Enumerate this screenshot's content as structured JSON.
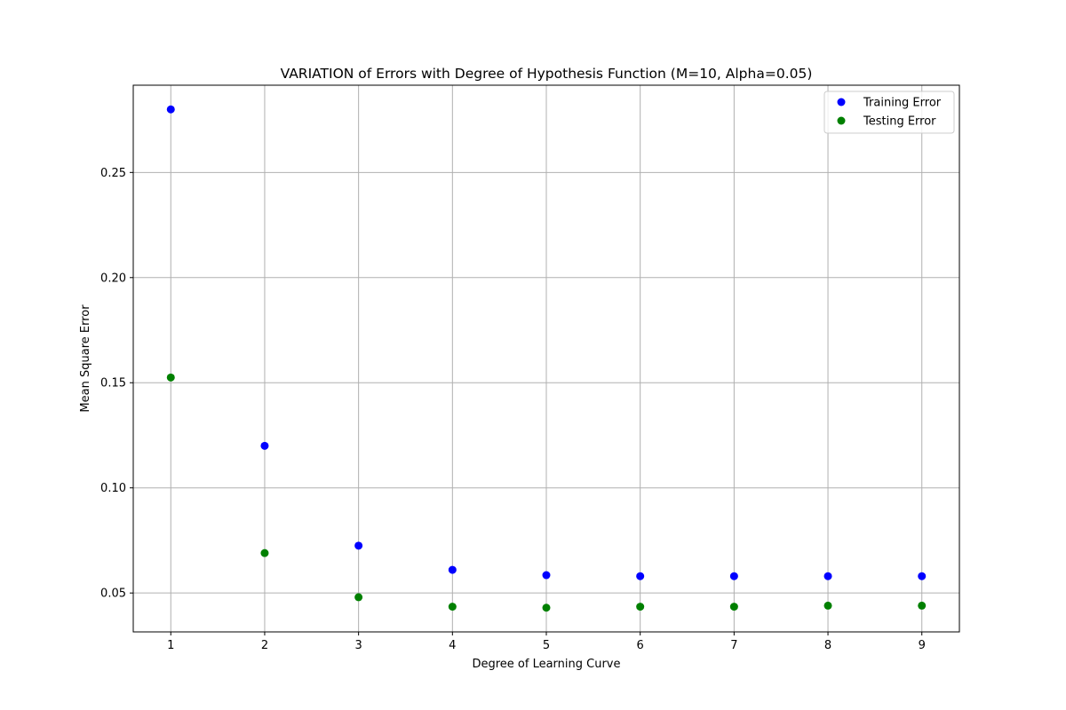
{
  "chart_data": {
    "type": "scatter",
    "title": "VARIATION of Errors with Degree of Hypothesis Function (M=10, Alpha=0.05)",
    "xlabel": "Degree of Learning Curve",
    "ylabel": "Mean Square Error",
    "x": [
      1,
      2,
      3,
      4,
      5,
      6,
      7,
      8,
      9
    ],
    "xlim": [
      0.6,
      9.4
    ],
    "ylim": [
      0.0315,
      0.2915
    ],
    "xticks": [
      1,
      2,
      3,
      4,
      5,
      6,
      7,
      8,
      9
    ],
    "xtick_labels": [
      "1",
      "2",
      "3",
      "4",
      "5",
      "6",
      "7",
      "8",
      "9"
    ],
    "yticks": [
      0.05,
      0.1,
      0.15,
      0.2,
      0.25
    ],
    "ytick_labels": [
      "0.05",
      "0.10",
      "0.15",
      "0.20",
      "0.25"
    ],
    "grid": true,
    "legend_position": "top-right",
    "series": [
      {
        "name": "Training Error",
        "color": "#0000ff",
        "values": [
          0.28,
          0.12,
          0.0725,
          0.061,
          0.0585,
          0.058,
          0.058,
          0.058,
          0.058
        ]
      },
      {
        "name": "Testing Error",
        "color": "#008000",
        "values": [
          0.1525,
          0.069,
          0.048,
          0.0435,
          0.043,
          0.0435,
          0.0435,
          0.044,
          0.044
        ]
      }
    ]
  }
}
